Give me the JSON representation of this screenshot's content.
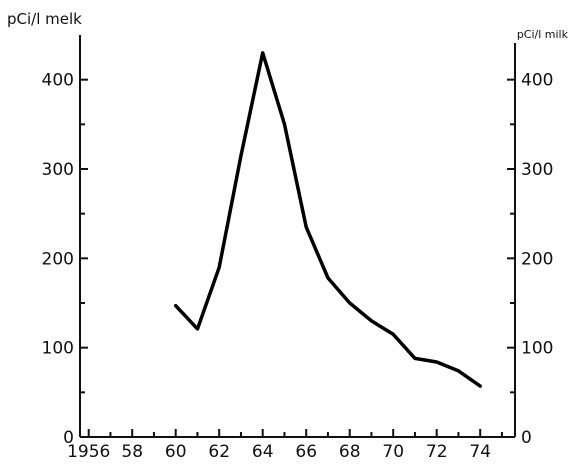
{
  "chart_data": {
    "type": "line",
    "left_axis_label": "pCi/l melk",
    "right_axis_label": "pCi/l milk",
    "x_tick_labels": [
      "1956",
      "58",
      "60",
      "62",
      "64",
      "66",
      "68",
      "70",
      "72",
      "74"
    ],
    "x_ticks": [
      1956,
      1958,
      1960,
      1962,
      1964,
      1966,
      1968,
      1970,
      1972,
      1974
    ],
    "xlim": [
      1955.6,
      1975.6
    ],
    "y_ticks": [
      0,
      100,
      200,
      300,
      400
    ],
    "y_tick_labels": [
      "0",
      "100",
      "200",
      "300",
      "400"
    ],
    "ylim": [
      0,
      450
    ],
    "grid": false,
    "series": [
      {
        "x": [
          1960,
          1961,
          1962,
          1963,
          1964,
          1965,
          1966,
          1967,
          1968,
          1969,
          1970,
          1971,
          1972,
          1973,
          1974
        ],
        "values": [
          147,
          121,
          190,
          315,
          430,
          350,
          235,
          178,
          150,
          130,
          115,
          88,
          84,
          74,
          57
        ]
      }
    ]
  }
}
